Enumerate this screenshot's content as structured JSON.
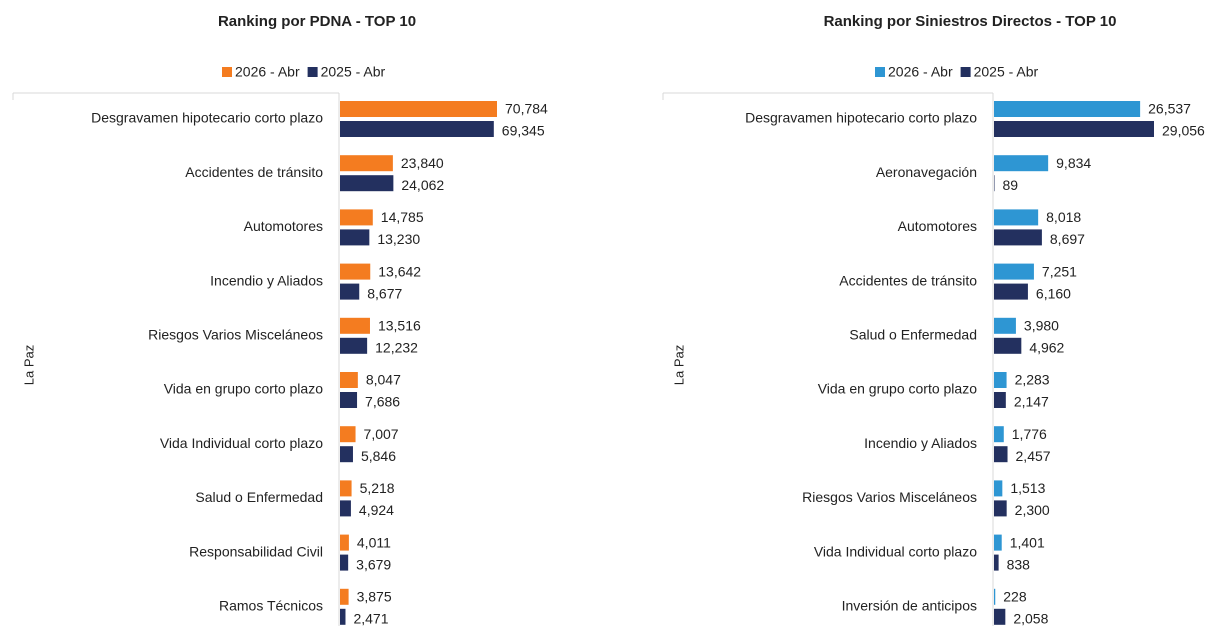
{
  "chart_data": [
    {
      "type": "barh",
      "title": "Ranking por PDNA - TOP 10",
      "y_label": "La Paz",
      "legend": "top",
      "categories": [
        "Desgravamen hipotecario corto plazo",
        "Accidentes de tránsito",
        "Automotores",
        "Incendio y Aliados",
        "Riesgos Varios Misceláneos",
        "Vida en grupo corto plazo",
        "Vida Individual corto plazo",
        "Salud o Enfermedad",
        "Responsabilidad Civil",
        "Ramos Técnicos"
      ],
      "series": [
        {
          "name": "2026 - Abr",
          "color": "#f47c20",
          "values": [
            70784,
            23840,
            14785,
            13642,
            13516,
            8047,
            7007,
            5218,
            4011,
            3875
          ],
          "value_labels": [
            "70,784",
            "23,840",
            "14,785",
            "13,642",
            "13,516",
            "8,047",
            "7,007",
            "5,218",
            "4,011",
            "3,875"
          ]
        },
        {
          "name": "2025 - Abr",
          "color": "#23305f",
          "values": [
            69345,
            24062,
            13230,
            8677,
            12232,
            7686,
            5846,
            4924,
            3679,
            2471
          ],
          "value_labels": [
            "69,345",
            "24,062",
            "13,230",
            "8,677",
            "12,232",
            "7,686",
            "5,846",
            "4,924",
            "3,679",
            "2,471"
          ]
        }
      ]
    },
    {
      "type": "barh",
      "title": "Ranking por Siniestros Directos - TOP 10",
      "y_label": "La Paz",
      "legend": "top",
      "categories": [
        "Desgravamen hipotecario corto plazo",
        "Aeronavegación",
        "Automotores",
        "Accidentes de tránsito",
        "Salud o Enfermedad",
        "Vida en grupo corto plazo",
        "Incendio y Aliados",
        "Riesgos Varios Misceláneos",
        "Vida Individual corto plazo",
        "Inversión de anticipos"
      ],
      "series": [
        {
          "name": "2026 - Abr",
          "color": "#2e96d3",
          "values": [
            26537,
            9834,
            8018,
            7251,
            3980,
            2283,
            1776,
            1513,
            1401,
            228
          ],
          "value_labels": [
            "26,537",
            "9,834",
            "8,018",
            "7,251",
            "3,980",
            "2,283",
            "1,776",
            "1,513",
            "1,401",
            "228"
          ]
        },
        {
          "name": "2025 - Abr",
          "color": "#23305f",
          "values": [
            29056,
            89,
            8697,
            6160,
            4962,
            2147,
            2457,
            2300,
            838,
            2058
          ],
          "value_labels": [
            "29,056",
            "89",
            "8,697",
            "6,160",
            "4,962",
            "2,147",
            "2,457",
            "2,300",
            "838",
            "2,058"
          ]
        }
      ]
    }
  ]
}
